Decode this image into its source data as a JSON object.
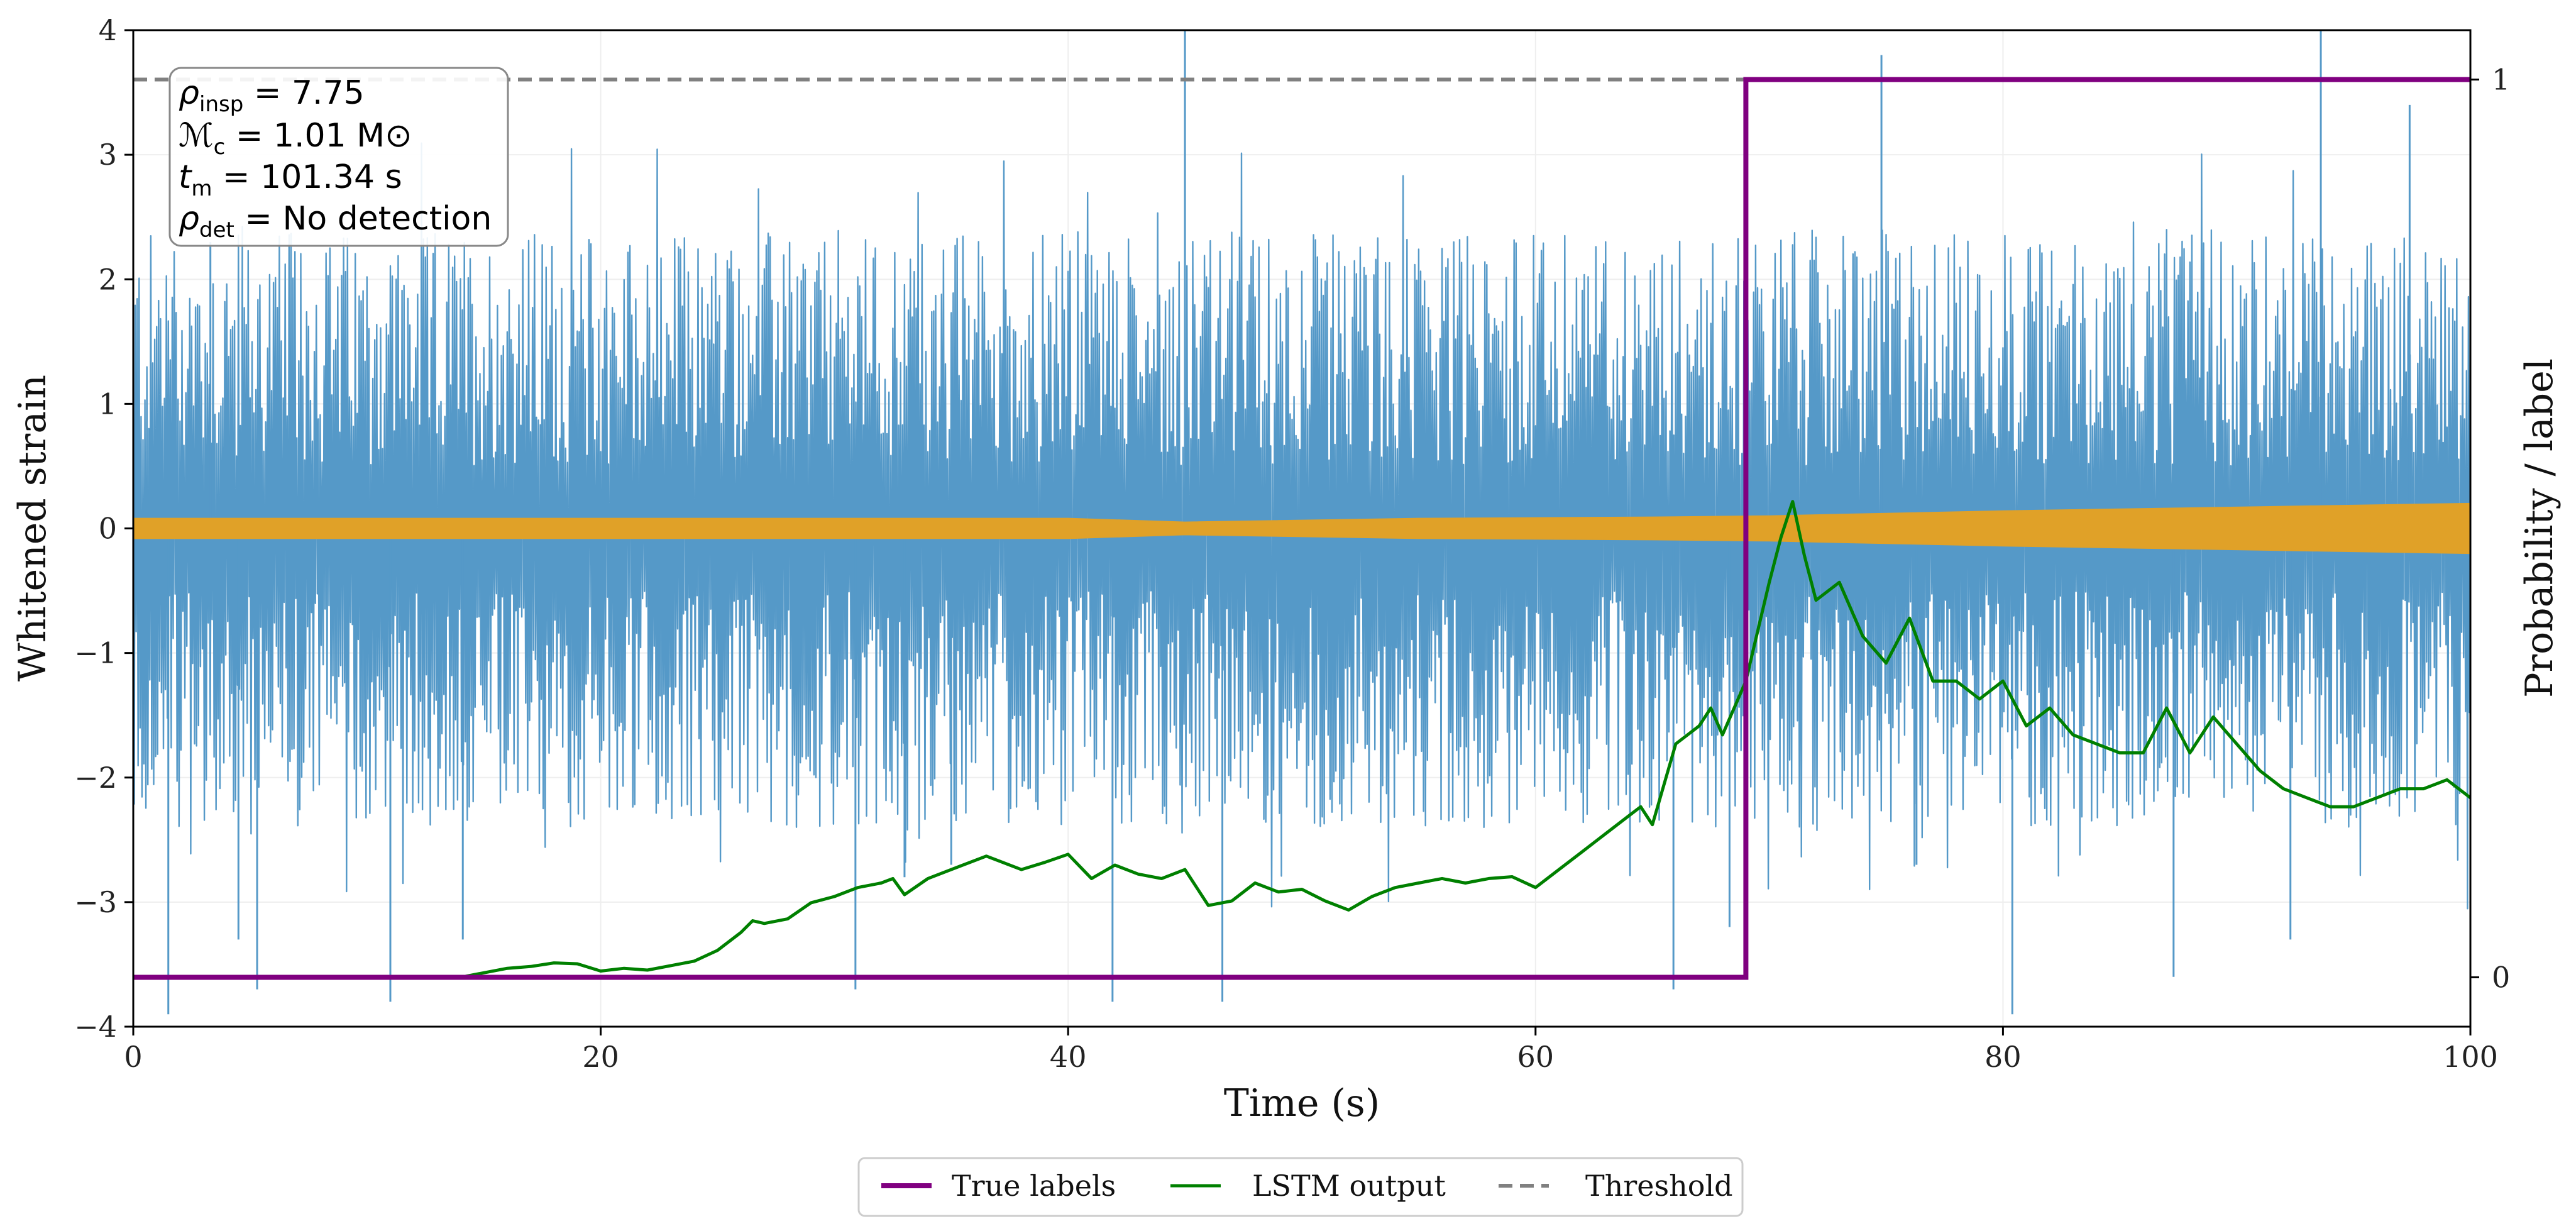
{
  "chart_data": {
    "type": "line",
    "xlabel": "Time (s)",
    "ylabel": "Whitened strain",
    "ylabel_right": "Probability / label",
    "xlim": [
      0,
      100
    ],
    "ylim": [
      -4,
      4
    ],
    "ylim_right": [
      -0.055,
      1.055
    ],
    "x_ticks": [
      0,
      20,
      40,
      60,
      80,
      100
    ],
    "x_tick_labels": [
      "0",
      "20",
      "40",
      "60",
      "80",
      "100"
    ],
    "y_ticks": [
      -4,
      -3,
      -2,
      -1,
      0,
      1,
      2,
      3,
      4
    ],
    "y_tick_labels": [
      "−4",
      "−3",
      "−2",
      "−1",
      "0",
      "1",
      "2",
      "3",
      "4"
    ],
    "y_right_ticks": [
      0,
      1
    ],
    "y_right_tick_labels": [
      "0",
      "1"
    ],
    "grid": true,
    "annotation": [
      {
        "symbol": "ρ",
        "sub": "insp",
        "value": " = 7.75"
      },
      {
        "symbol": "ℳ",
        "sub": "c",
        "value": " = 1.01 M⊙"
      },
      {
        "symbol": "t",
        "sub": "m",
        "value": " = 101.34 s"
      },
      {
        "symbol": "ρ",
        "sub": "det",
        "value": " = No detection"
      }
    ],
    "legend": {
      "placement": "bottom-center",
      "entries": [
        {
          "label": "True labels",
          "color": "#800080",
          "style": "solid"
        },
        {
          "label": "LSTM output",
          "color": "#008000",
          "style": "solid"
        },
        {
          "label": "Threshold",
          "color": "#808080",
          "style": "dashed"
        }
      ]
    },
    "series": [
      {
        "name": "Whitened strain (noise)",
        "axis": "left",
        "color": "#5599c8",
        "render": "noise-band",
        "typical_amplitude": 2.0,
        "spike_times": [
          1.5,
          3.3,
          4.5,
          5.3,
          11.0,
          14.1,
          30.9,
          33.0,
          35.0,
          41.9,
          45.0,
          46.6,
          65.9,
          68.3,
          74.8,
          76.3,
          80.4,
          87.3,
          92.3,
          93.6,
          97.4
        ],
        "spike_values": [
          -3.9,
          2.3,
          -3.3,
          -3.7,
          -3.8,
          -3.3,
          -3.7,
          -2.8,
          -2.7,
          -3.8,
          4.0,
          -3.8,
          -3.7,
          -3.2,
          3.8,
          -2.7,
          -3.9,
          -3.6,
          -3.3,
          4.0,
          3.4
        ]
      },
      {
        "name": "Injected signal",
        "axis": "left",
        "color": "#e0a128",
        "render": "band",
        "x": [
          0,
          20,
          40,
          45,
          55,
          65,
          70,
          80,
          90,
          100
        ],
        "half_width": [
          0.08,
          0.08,
          0.08,
          0.05,
          0.08,
          0.09,
          0.1,
          0.14,
          0.17,
          0.2
        ]
      },
      {
        "name": "LSTM output",
        "axis": "right",
        "color": "#008000",
        "x": [
          0,
          14,
          15,
          16,
          17,
          18,
          19,
          20,
          21,
          22,
          23,
          24,
          25,
          26,
          26.5,
          27,
          28,
          29,
          30,
          31,
          32,
          32.5,
          33,
          34,
          35,
          36,
          36.5,
          37,
          38,
          39,
          40,
          41,
          42,
          43,
          44,
          45,
          46,
          47,
          48,
          49,
          50,
          51,
          52,
          53,
          54,
          55,
          56,
          57,
          58,
          59,
          60,
          61,
          62,
          63,
          64,
          64.5,
          65,
          66,
          67,
          67.5,
          68,
          69,
          70,
          70.5,
          71,
          71.5,
          72,
          73,
          74,
          75,
          76,
          77,
          78,
          79,
          80,
          81,
          82,
          83,
          84,
          85,
          86,
          87,
          88,
          89,
          90,
          91,
          92,
          93,
          94,
          95,
          96,
          97,
          98,
          99,
          100
        ],
        "values": [
          0.0,
          0.0,
          0.005,
          0.01,
          0.012,
          0.016,
          0.015,
          0.007,
          0.01,
          0.008,
          0.013,
          0.018,
          0.03,
          0.05,
          0.063,
          0.06,
          0.065,
          0.083,
          0.09,
          0.1,
          0.105,
          0.11,
          0.092,
          0.11,
          0.12,
          0.13,
          0.135,
          0.13,
          0.12,
          0.128,
          0.137,
          0.11,
          0.125,
          0.115,
          0.11,
          0.12,
          0.08,
          0.085,
          0.105,
          0.095,
          0.098,
          0.085,
          0.075,
          0.09,
          0.1,
          0.105,
          0.11,
          0.105,
          0.11,
          0.112,
          0.1,
          0.12,
          0.14,
          0.16,
          0.18,
          0.19,
          0.17,
          0.26,
          0.28,
          0.3,
          0.27,
          0.33,
          0.44,
          0.49,
          0.53,
          0.47,
          0.42,
          0.44,
          0.38,
          0.35,
          0.4,
          0.33,
          0.33,
          0.31,
          0.33,
          0.28,
          0.3,
          0.27,
          0.26,
          0.25,
          0.25,
          0.3,
          0.25,
          0.29,
          0.26,
          0.23,
          0.21,
          0.2,
          0.19,
          0.19,
          0.2,
          0.21,
          0.21,
          0.22,
          0.2
        ]
      },
      {
        "name": "True labels",
        "axis": "right",
        "color": "#800080",
        "render": "step",
        "x": [
          0,
          69.0,
          69.0,
          100
        ],
        "values": [
          0,
          0,
          1,
          1
        ]
      },
      {
        "name": "Threshold",
        "axis": "right",
        "color": "#808080",
        "render": "dashed",
        "value": 1.0
      }
    ]
  }
}
